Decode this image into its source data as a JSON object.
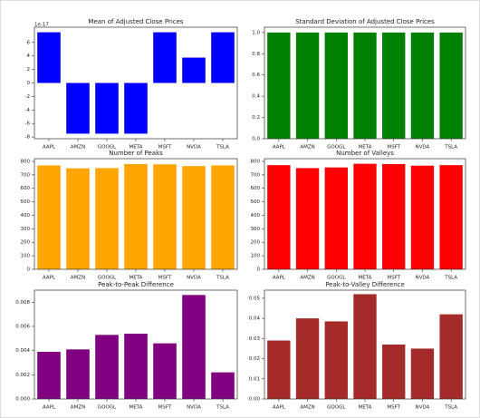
{
  "chart_data": [
    {
      "type": "bar",
      "title": "Mean of Adjusted Close Prices",
      "offset_label": "1e-17",
      "categories": [
        "AAPL",
        "AMZN",
        "GOOGL",
        "META",
        "MSFT",
        "NVDA",
        "TSLA"
      ],
      "values": [
        7.5,
        -7.5,
        -7.5,
        -7.5,
        7.5,
        3.75,
        7.5
      ],
      "color": "#0000ff",
      "ylim": [
        -8.25,
        8.25
      ],
      "yticks": [
        -8,
        -6,
        -4,
        -2,
        0,
        2,
        4,
        6
      ]
    },
    {
      "type": "bar",
      "title": "Standard Deviation of Adjusted Close Prices",
      "categories": [
        "AAPL",
        "AMZN",
        "GOOGL",
        "META",
        "MSFT",
        "NVDA",
        "TSLA"
      ],
      "values": [
        1,
        1,
        1,
        1,
        1,
        1,
        1
      ],
      "color": "#008000",
      "ylim": [
        0,
        1.05
      ],
      "yticks": [
        {
          "value": 0,
          "label": "0.0"
        },
        0.2,
        0.4,
        0.6,
        0.8,
        {
          "value": 1,
          "label": "1.0"
        }
      ]
    },
    {
      "type": "bar",
      "title": "Number of Peaks",
      "categories": [
        "AAPL",
        "AMZN",
        "GOOGL",
        "META",
        "MSFT",
        "NVDA",
        "TSLA"
      ],
      "values": [
        770,
        748,
        750,
        780,
        778,
        765,
        770
      ],
      "color": "#ffa500",
      "ylim": [
        0,
        820
      ],
      "yticks": [
        0,
        100,
        200,
        300,
        400,
        500,
        600,
        700,
        800
      ]
    },
    {
      "type": "bar",
      "title": "Number of Valleys",
      "categories": [
        "AAPL",
        "AMZN",
        "GOOGL",
        "META",
        "MSFT",
        "NVDA",
        "TSLA"
      ],
      "values": [
        772,
        750,
        755,
        782,
        780,
        768,
        772
      ],
      "color": "#ff0000",
      "ylim": [
        0,
        820
      ],
      "yticks": [
        0,
        100,
        200,
        300,
        400,
        500,
        600,
        700,
        800
      ]
    },
    {
      "type": "bar",
      "title": "Peak-to-Peak Difference",
      "categories": [
        "AAPL",
        "AMZN",
        "GOOGL",
        "META",
        "MSFT",
        "NVDA",
        "TSLA"
      ],
      "values": [
        0.0039,
        0.0041,
        0.0053,
        0.0054,
        0.0046,
        0.0086,
        0.0022
      ],
      "color": "#800080",
      "ylim": [
        0,
        0.009
      ],
      "yticks": [
        {
          "value": 0,
          "label": "0.000"
        },
        {
          "value": 0.002,
          "label": "0.002"
        },
        {
          "value": 0.004,
          "label": "0.004"
        },
        {
          "value": 0.006,
          "label": "0.006"
        },
        {
          "value": 0.008,
          "label": "0.008"
        }
      ]
    },
    {
      "type": "bar",
      "title": "Peak-to-Valley Difference",
      "categories": [
        "AAPL",
        "AMZN",
        "GOOGL",
        "META",
        "MSFT",
        "NVDA",
        "TSLA"
      ],
      "values": [
        0.029,
        0.04,
        0.0385,
        0.052,
        0.027,
        0.025,
        0.042
      ],
      "color": "#a52a2a",
      "ylim": [
        0,
        0.054
      ],
      "yticks": [
        {
          "value": 0,
          "label": "0.00"
        },
        0.01,
        0.02,
        0.03,
        0.04,
        0.05
      ]
    }
  ]
}
